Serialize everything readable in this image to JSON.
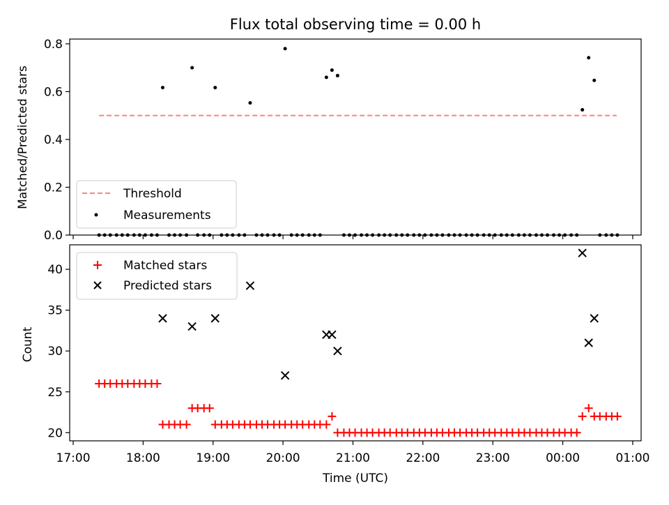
{
  "chart_data": [
    {
      "type": "scatter",
      "title": "Flux total observing time = 0.00 h",
      "xlabel": "",
      "ylabel": "Matched/Predicted stars",
      "xlim_hours": [
        16.95,
        25.12
      ],
      "ylim": [
        0,
        0.82
      ],
      "yticks": [
        0.0,
        0.2,
        0.4,
        0.6,
        0.8
      ],
      "ytick_labels": [
        "0.0",
        "0.2",
        "0.4",
        "0.6",
        "0.8"
      ],
      "legend_position": "lower-left",
      "threshold": {
        "name": "Threshold",
        "value": 0.5,
        "x_start": 17.37,
        "x_end": 24.77,
        "color": "#ff7f7f"
      },
      "measurements": {
        "name": "Measurements",
        "color": "#000000",
        "points": [
          [
            17.37,
            0
          ],
          [
            17.45,
            0
          ],
          [
            17.53,
            0
          ],
          [
            17.62,
            0
          ],
          [
            17.7,
            0
          ],
          [
            17.78,
            0
          ],
          [
            17.87,
            0
          ],
          [
            17.95,
            0
          ],
          [
            18.03,
            0
          ],
          [
            18.12,
            0
          ],
          [
            18.2,
            0
          ],
          [
            18.28,
            0.617
          ],
          [
            18.37,
            0
          ],
          [
            18.45,
            0
          ],
          [
            18.53,
            0
          ],
          [
            18.62,
            0
          ],
          [
            18.7,
            0.7
          ],
          [
            18.78,
            0
          ],
          [
            18.87,
            0
          ],
          [
            18.95,
            0
          ],
          [
            19.03,
            0.617
          ],
          [
            19.12,
            0
          ],
          [
            19.2,
            0
          ],
          [
            19.28,
            0
          ],
          [
            19.37,
            0
          ],
          [
            19.45,
            0
          ],
          [
            19.53,
            0.553
          ],
          [
            19.62,
            0
          ],
          [
            19.7,
            0
          ],
          [
            19.78,
            0
          ],
          [
            19.87,
            0
          ],
          [
            19.95,
            0
          ],
          [
            20.03,
            0.78
          ],
          [
            20.12,
            0
          ],
          [
            20.2,
            0
          ],
          [
            20.28,
            0
          ],
          [
            20.37,
            0
          ],
          [
            20.45,
            0
          ],
          [
            20.53,
            0
          ],
          [
            20.62,
            0.66
          ],
          [
            20.7,
            0.69
          ],
          [
            20.78,
            0.667
          ],
          [
            20.87,
            0
          ],
          [
            20.95,
            0
          ],
          [
            21.03,
            0
          ],
          [
            21.12,
            0
          ],
          [
            21.2,
            0
          ],
          [
            21.28,
            0
          ],
          [
            21.37,
            0
          ],
          [
            21.45,
            0
          ],
          [
            21.53,
            0
          ],
          [
            21.62,
            0
          ],
          [
            21.7,
            0
          ],
          [
            21.78,
            0
          ],
          [
            21.87,
            0
          ],
          [
            21.95,
            0
          ],
          [
            22.03,
            0
          ],
          [
            22.12,
            0
          ],
          [
            22.2,
            0
          ],
          [
            22.28,
            0
          ],
          [
            22.37,
            0
          ],
          [
            22.45,
            0
          ],
          [
            22.53,
            0
          ],
          [
            22.62,
            0
          ],
          [
            22.7,
            0
          ],
          [
            22.78,
            0
          ],
          [
            22.87,
            0
          ],
          [
            22.95,
            0
          ],
          [
            23.03,
            0
          ],
          [
            23.12,
            0
          ],
          [
            23.2,
            0
          ],
          [
            23.28,
            0
          ],
          [
            23.37,
            0
          ],
          [
            23.45,
            0
          ],
          [
            23.53,
            0
          ],
          [
            23.62,
            0
          ],
          [
            23.7,
            0
          ],
          [
            23.78,
            0
          ],
          [
            23.87,
            0
          ],
          [
            23.95,
            0
          ],
          [
            24.03,
            0
          ],
          [
            24.12,
            0
          ],
          [
            24.2,
            0
          ],
          [
            24.28,
            0.524
          ],
          [
            24.37,
            0.742
          ],
          [
            24.45,
            0.647
          ],
          [
            24.53,
            0
          ],
          [
            24.62,
            0
          ],
          [
            24.7,
            0
          ],
          [
            24.78,
            0
          ]
        ]
      }
    },
    {
      "type": "scatter",
      "title": "",
      "xlabel": "Time (UTC)",
      "ylabel": "Count",
      "xlim_hours": [
        16.95,
        25.12
      ],
      "ylim": [
        19.0,
        43.0
      ],
      "yticks": [
        20,
        25,
        30,
        35,
        40
      ],
      "ytick_labels": [
        "20",
        "25",
        "30",
        "35",
        "40"
      ],
      "xticks_hours": [
        17,
        18,
        19,
        20,
        21,
        22,
        23,
        24,
        25
      ],
      "xtick_labels": [
        "17:00",
        "18:00",
        "19:00",
        "20:00",
        "21:00",
        "22:00",
        "23:00",
        "00:00",
        "01:00"
      ],
      "legend_position": "upper-left",
      "matched": {
        "name": "Matched stars",
        "color": "#ff0000",
        "points": [
          [
            17.37,
            26
          ],
          [
            17.45,
            26
          ],
          [
            17.53,
            26
          ],
          [
            17.62,
            26
          ],
          [
            17.7,
            26
          ],
          [
            17.78,
            26
          ],
          [
            17.87,
            26
          ],
          [
            17.95,
            26
          ],
          [
            18.03,
            26
          ],
          [
            18.12,
            26
          ],
          [
            18.2,
            26
          ],
          [
            18.28,
            21
          ],
          [
            18.37,
            21
          ],
          [
            18.45,
            21
          ],
          [
            18.53,
            21
          ],
          [
            18.62,
            21
          ],
          [
            18.7,
            23
          ],
          [
            18.78,
            23
          ],
          [
            18.87,
            23
          ],
          [
            18.95,
            23
          ],
          [
            19.03,
            21
          ],
          [
            19.12,
            21
          ],
          [
            19.2,
            21
          ],
          [
            19.28,
            21
          ],
          [
            19.37,
            21
          ],
          [
            19.45,
            21
          ],
          [
            19.53,
            21
          ],
          [
            19.62,
            21
          ],
          [
            19.7,
            21
          ],
          [
            19.78,
            21
          ],
          [
            19.87,
            21
          ],
          [
            19.95,
            21
          ],
          [
            20.03,
            21
          ],
          [
            20.12,
            21
          ],
          [
            20.2,
            21
          ],
          [
            20.28,
            21
          ],
          [
            20.37,
            21
          ],
          [
            20.45,
            21
          ],
          [
            20.53,
            21
          ],
          [
            20.62,
            21
          ],
          [
            20.7,
            22
          ],
          [
            20.78,
            20
          ],
          [
            20.87,
            20
          ],
          [
            20.95,
            20
          ],
          [
            21.03,
            20
          ],
          [
            21.12,
            20
          ],
          [
            21.2,
            20
          ],
          [
            21.28,
            20
          ],
          [
            21.37,
            20
          ],
          [
            21.45,
            20
          ],
          [
            21.53,
            20
          ],
          [
            21.62,
            20
          ],
          [
            21.7,
            20
          ],
          [
            21.78,
            20
          ],
          [
            21.87,
            20
          ],
          [
            21.95,
            20
          ],
          [
            22.03,
            20
          ],
          [
            22.12,
            20
          ],
          [
            22.2,
            20
          ],
          [
            22.28,
            20
          ],
          [
            22.37,
            20
          ],
          [
            22.45,
            20
          ],
          [
            22.53,
            20
          ],
          [
            22.62,
            20
          ],
          [
            22.7,
            20
          ],
          [
            22.78,
            20
          ],
          [
            22.87,
            20
          ],
          [
            22.95,
            20
          ],
          [
            23.03,
            20
          ],
          [
            23.12,
            20
          ],
          [
            23.2,
            20
          ],
          [
            23.28,
            20
          ],
          [
            23.37,
            20
          ],
          [
            23.45,
            20
          ],
          [
            23.53,
            20
          ],
          [
            23.62,
            20
          ],
          [
            23.7,
            20
          ],
          [
            23.78,
            20
          ],
          [
            23.87,
            20
          ],
          [
            23.95,
            20
          ],
          [
            24.03,
            20
          ],
          [
            24.12,
            20
          ],
          [
            24.2,
            20
          ],
          [
            24.28,
            22
          ],
          [
            24.37,
            23
          ],
          [
            24.45,
            22
          ],
          [
            24.53,
            22
          ],
          [
            24.62,
            22
          ],
          [
            24.7,
            22
          ],
          [
            24.78,
            22
          ]
        ]
      },
      "predicted": {
        "name": "Predicted stars",
        "color": "#000000",
        "points": [
          [
            18.28,
            34
          ],
          [
            18.7,
            33
          ],
          [
            19.03,
            34
          ],
          [
            19.53,
            38
          ],
          [
            20.03,
            27
          ],
          [
            20.62,
            32
          ],
          [
            20.7,
            32
          ],
          [
            20.78,
            30
          ],
          [
            24.28,
            42
          ],
          [
            24.37,
            31
          ],
          [
            24.45,
            34
          ]
        ]
      }
    }
  ]
}
